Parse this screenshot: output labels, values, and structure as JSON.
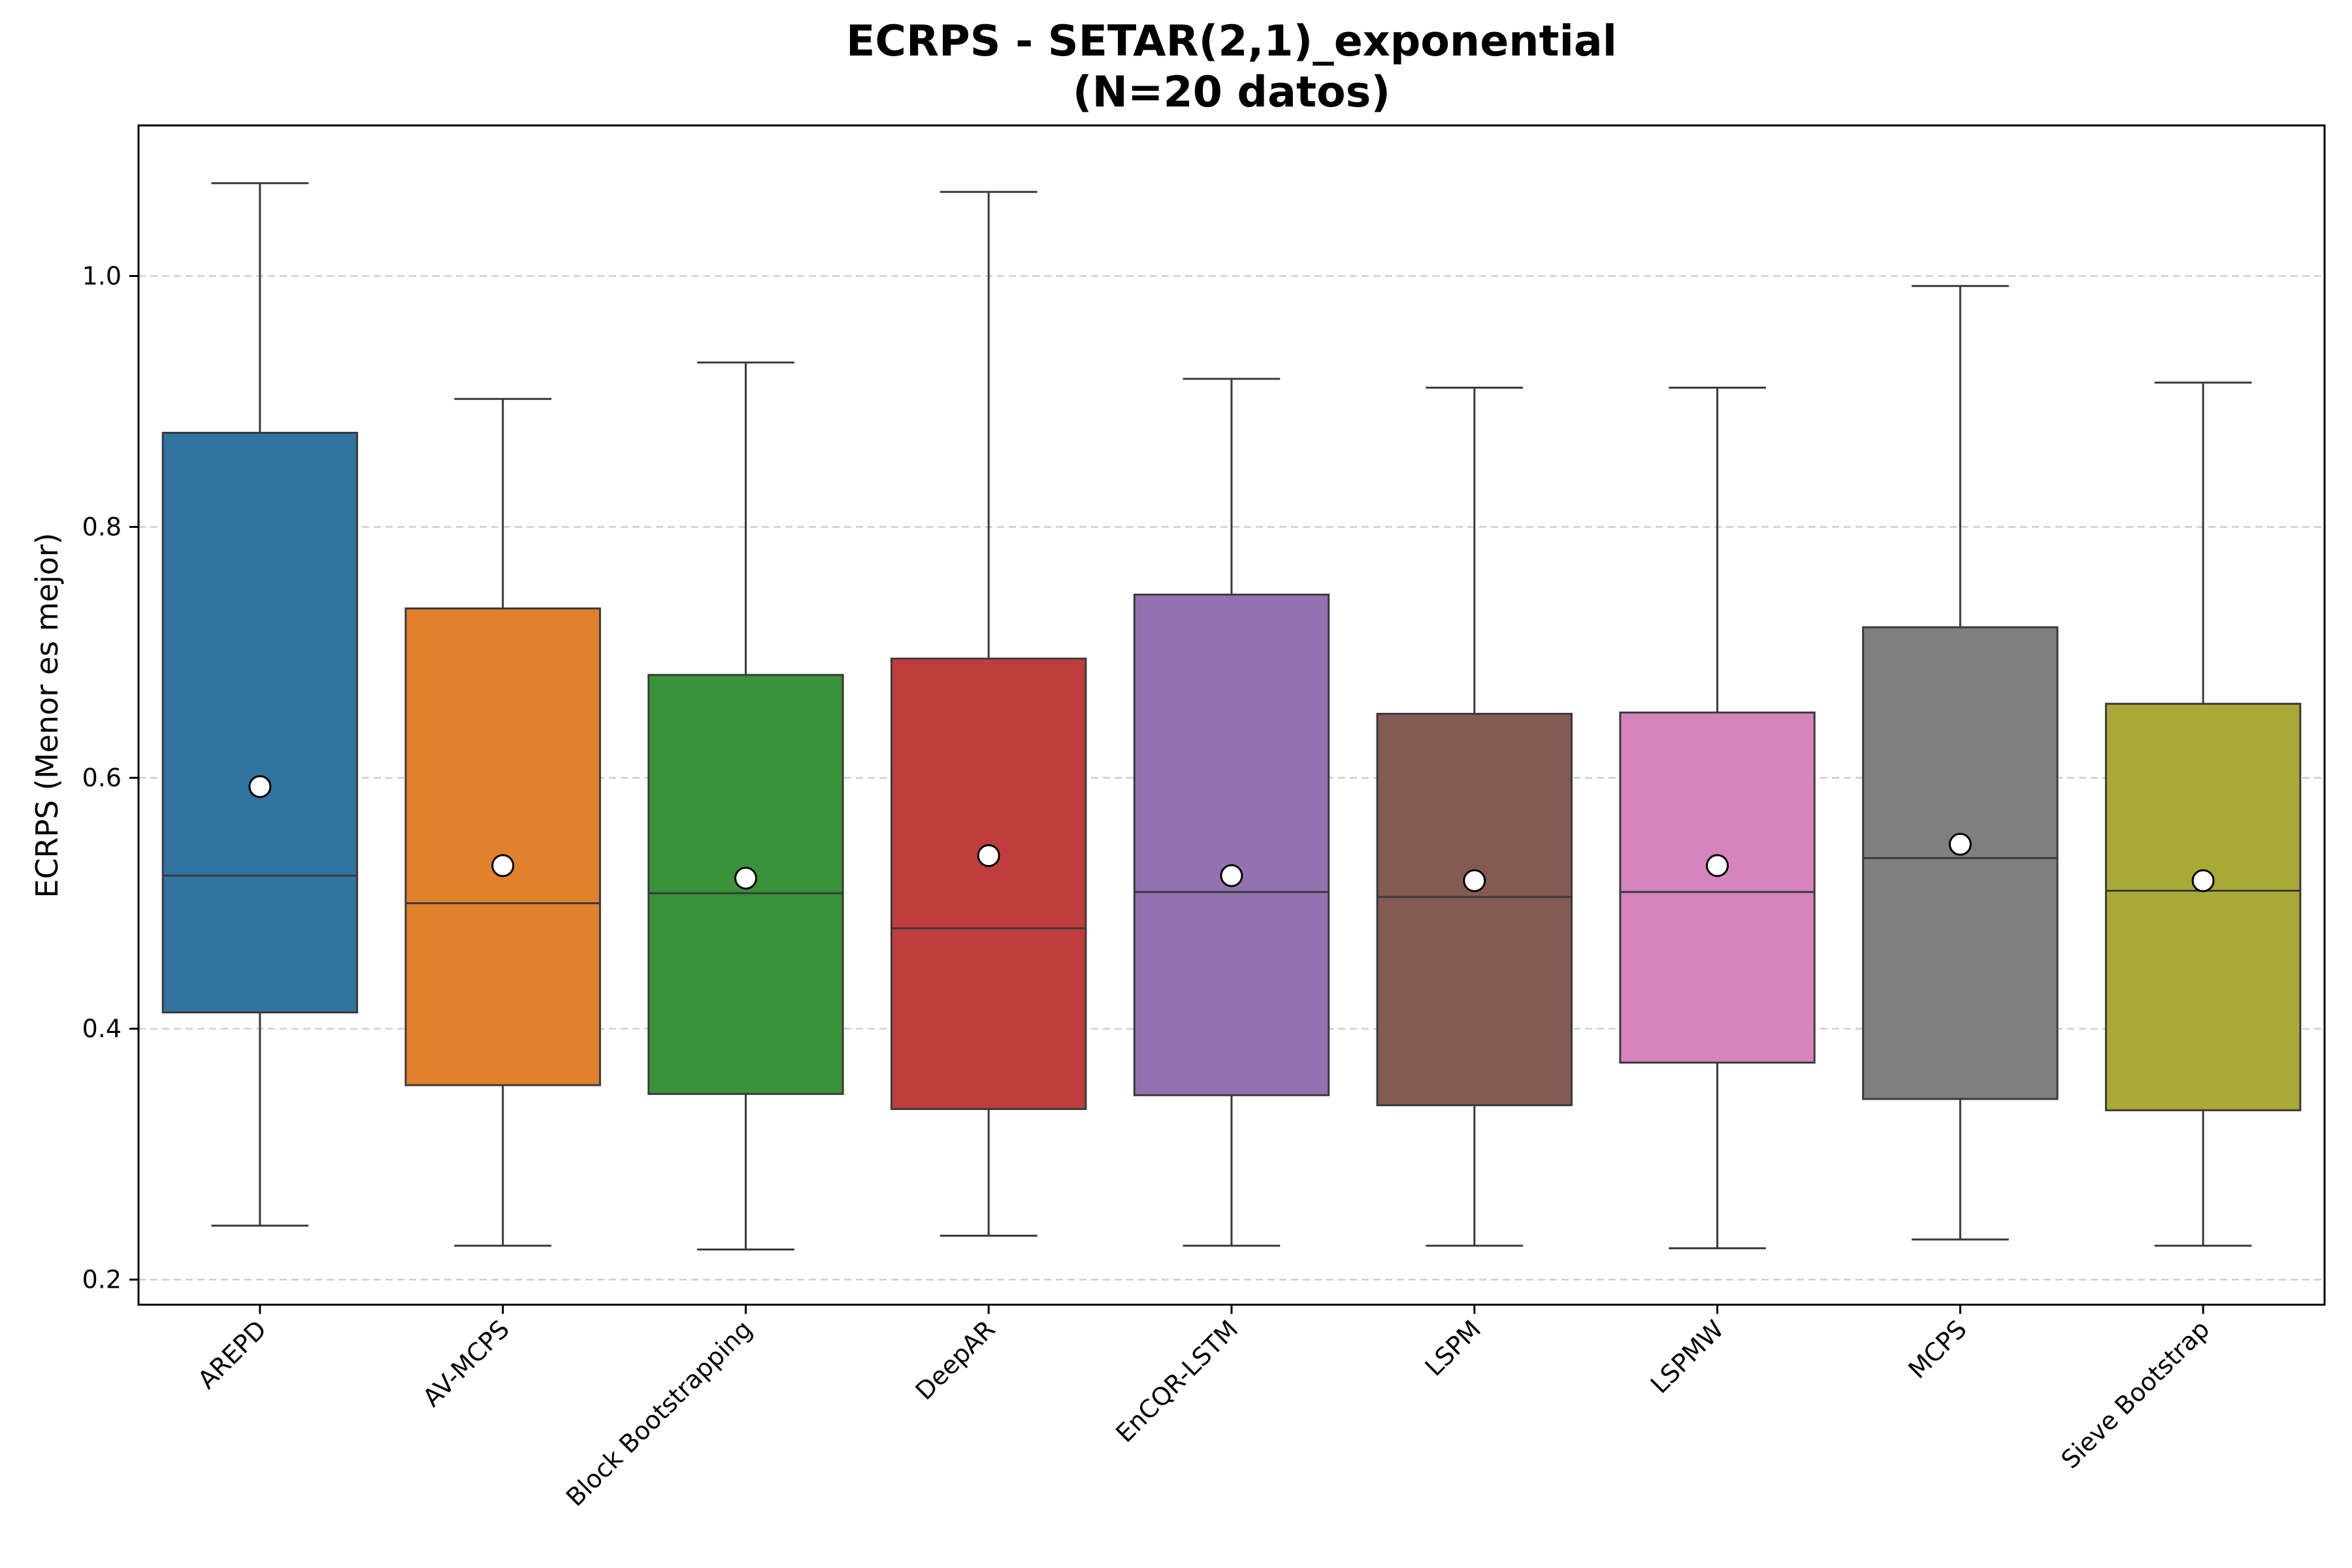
{
  "chart_data": {
    "type": "box",
    "title": [
      "ECRPS - SETAR(2,1)_exponential",
      "(N=20 datos)"
    ],
    "xlabel": "",
    "ylabel": "ECRPS (Menor es mejor)",
    "ylim": [
      0.18,
      1.12
    ],
    "yticks": [
      0.2,
      0.4,
      0.6,
      0.8,
      1.0
    ],
    "ytick_labels": [
      "0.2",
      "0.4",
      "0.6",
      "0.8",
      "1.0"
    ],
    "grid": "horizontal dashed",
    "categories": [
      "AREPD",
      "AV-MCPS",
      "Block Bootstrapping",
      "DeepAR",
      "EnCQR-LSTM",
      "LSPM",
      "LSPMW",
      "MCPS",
      "Sieve Bootstrap"
    ],
    "colors": [
      "#3274a1",
      "#e1812c",
      "#3a923a",
      "#c03d3e",
      "#9372b2",
      "#845b53",
      "#d684bd",
      "#7f7f7f",
      "#a9aa35"
    ],
    "boxes": [
      {
        "min": 0.243,
        "q1": 0.413,
        "median": 0.522,
        "q3": 0.875,
        "max": 1.074,
        "mean": 0.593
      },
      {
        "min": 0.227,
        "q1": 0.355,
        "median": 0.5,
        "q3": 0.735,
        "max": 0.902,
        "mean": 0.53
      },
      {
        "min": 0.224,
        "q1": 0.348,
        "median": 0.508,
        "q3": 0.682,
        "max": 0.931,
        "mean": 0.52
      },
      {
        "min": 0.235,
        "q1": 0.336,
        "median": 0.48,
        "q3": 0.695,
        "max": 1.067,
        "mean": 0.538
      },
      {
        "min": 0.227,
        "q1": 0.347,
        "median": 0.509,
        "q3": 0.746,
        "max": 0.918,
        "mean": 0.522
      },
      {
        "min": 0.227,
        "q1": 0.339,
        "median": 0.505,
        "q3": 0.651,
        "max": 0.911,
        "mean": 0.518
      },
      {
        "min": 0.225,
        "q1": 0.373,
        "median": 0.509,
        "q3": 0.652,
        "max": 0.911,
        "mean": 0.53
      },
      {
        "min": 0.232,
        "q1": 0.344,
        "median": 0.536,
        "q3": 0.72,
        "max": 0.992,
        "mean": 0.547
      },
      {
        "min": 0.227,
        "q1": 0.335,
        "median": 0.51,
        "q3": 0.659,
        "max": 0.915,
        "mean": 0.518
      }
    ]
  }
}
